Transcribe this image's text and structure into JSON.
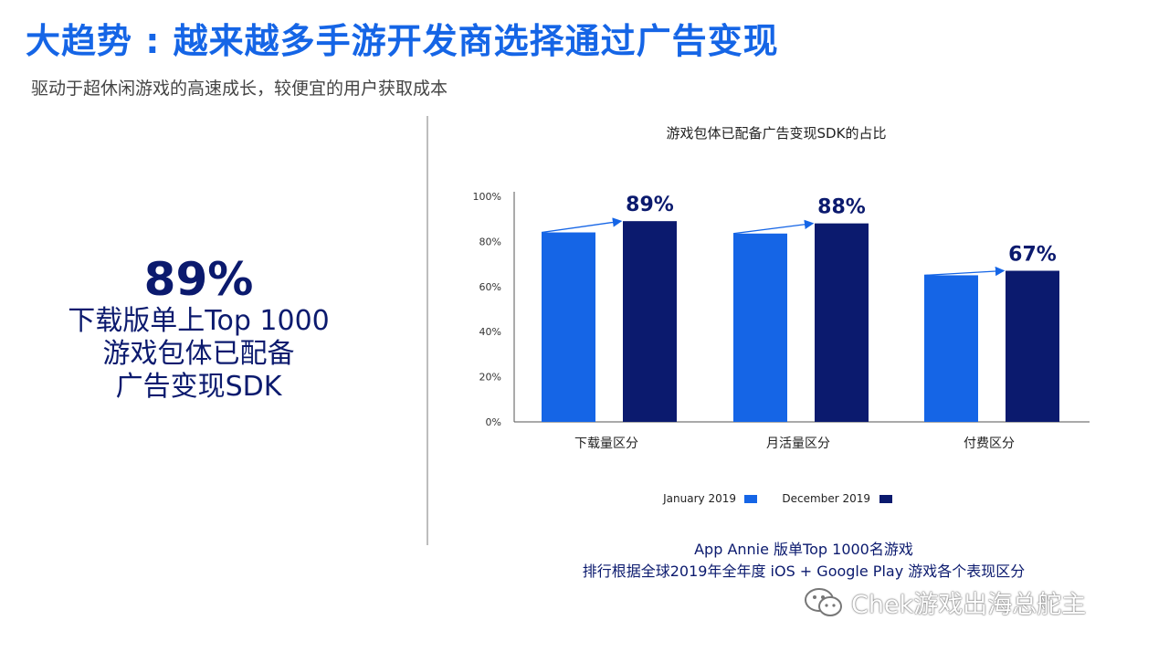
{
  "header": {
    "title": "大趋势 : 越来越多手游开发商选择通过广告变现",
    "subtitle": "驱动于超休闲游戏的高速成长，较便宜的用户获取成本"
  },
  "kpi": {
    "value": "89%",
    "line1": "下载版单上Top 1000",
    "line2": "游戏包体已配备",
    "line3": "广告变现SDK"
  },
  "source": {
    "line1": "App Annie 版单Top 1000名游戏",
    "line2": "排行根据全球2019年全年度 iOS + Google Play 游戏各个表现区分"
  },
  "watermark": {
    "text": "Chek游戏出海总舵主",
    "icon": "wechat-icon"
  },
  "colors": {
    "title": "#1565e6",
    "series_jan": "#1565e6",
    "series_dec": "#0b1a6e"
  },
  "chart_data": {
    "type": "bar",
    "title": "游戏包体已配备广告变现SDK的占比",
    "categories": [
      "下载量区分",
      "月活量区分",
      "付费区分"
    ],
    "series": [
      {
        "name": "January 2019",
        "values": [
          84,
          83.5,
          65
        ]
      },
      {
        "name": "December 2019",
        "values": [
          89,
          88,
          67
        ]
      }
    ],
    "data_labels": [
      "89%",
      "88%",
      "67%"
    ],
    "yticks": [
      "0%",
      "20%",
      "40%",
      "60%",
      "80%",
      "100%"
    ],
    "ylim": [
      0,
      100
    ],
    "grid": false,
    "legend": "bottom",
    "annotations": "arrows from January 2019 bar to December 2019 bar"
  }
}
